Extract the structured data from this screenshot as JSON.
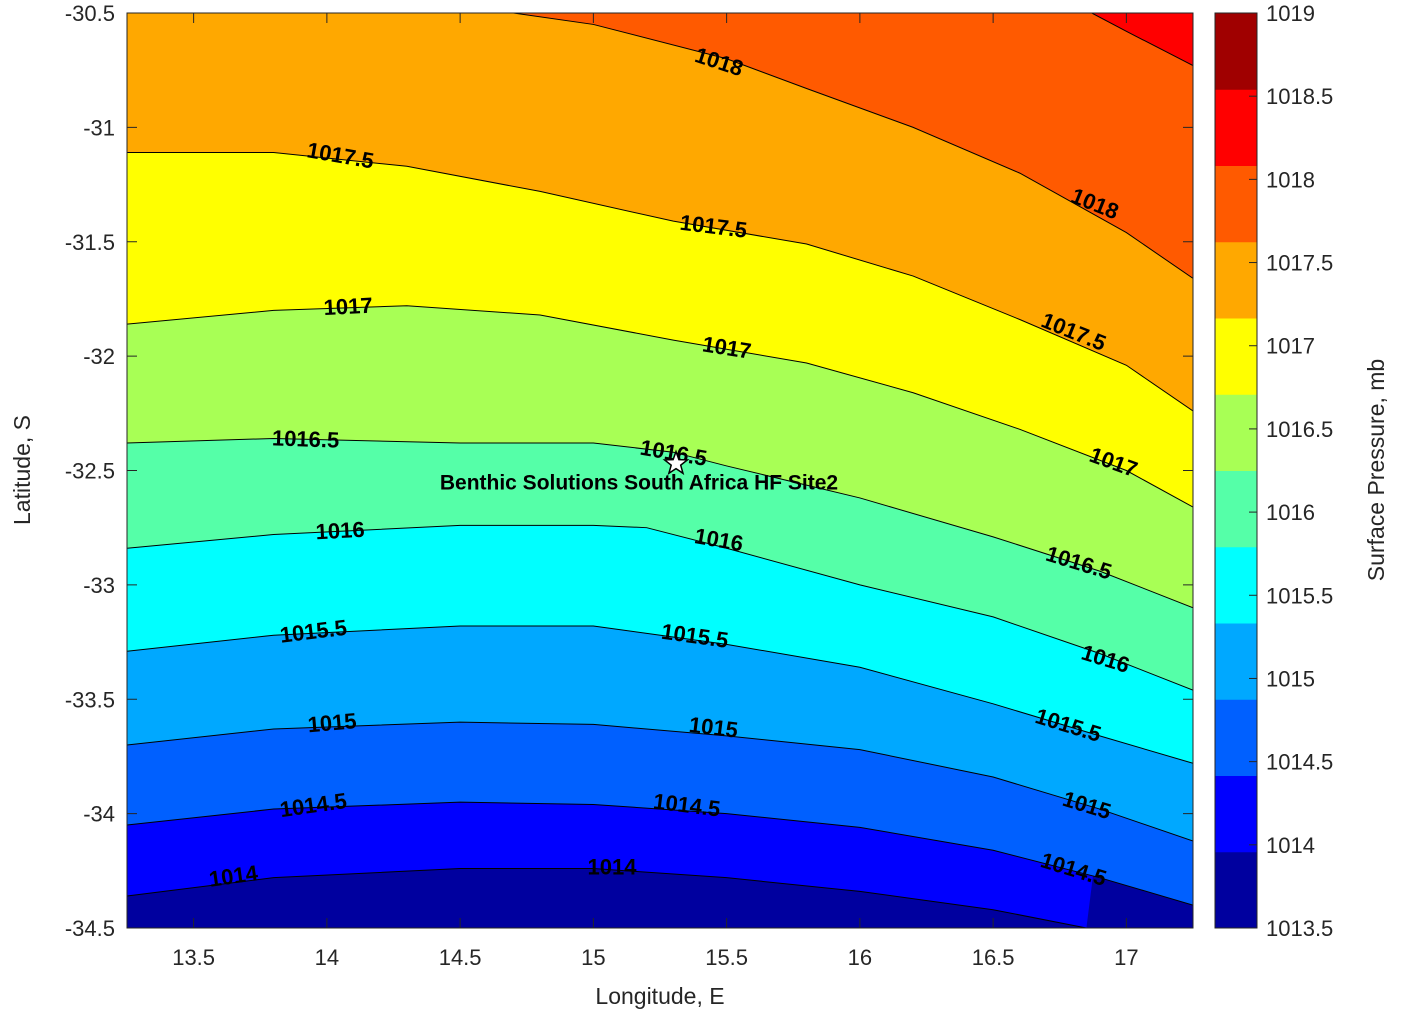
{
  "chart_data": {
    "type": "contour",
    "xlabel": "Longitude, E",
    "ylabel": "Latitude, S",
    "xlim": [
      13.25,
      17.25
    ],
    "ylim": [
      -34.5,
      -30.5
    ],
    "xticks": [
      13.5,
      14,
      14.5,
      15,
      15.5,
      16,
      16.5,
      17
    ],
    "yticks": [
      -30.5,
      -31,
      -31.5,
      -32,
      -32.5,
      -33,
      -33.5,
      -34,
      -34.5
    ],
    "colorbar": {
      "label": "Surface Pressure, mb",
      "levels": [
        1013.5,
        1014,
        1014.5,
        1015,
        1015.5,
        1016,
        1016.5,
        1017,
        1017.5,
        1018,
        1018.5,
        1019
      ],
      "colors": [
        "#00009f",
        "#0000ff",
        "#0060ff",
        "#00a8ff",
        "#00ffff",
        "#55ffa8",
        "#a8ff55",
        "#ffff00",
        "#ffa800",
        "#ff5a00",
        "#ff0000",
        "#a00000"
      ]
    },
    "site": {
      "label": "Benthic Solutions South Africa HF Site2",
      "lon": 15.31,
      "lat": -32.47
    },
    "contours": [
      {
        "level": 1014,
        "points": [
          [
            13.25,
            -34.36
          ],
          [
            13.8,
            -34.28
          ],
          [
            14.5,
            -34.24
          ],
          [
            15.0,
            -34.24
          ],
          [
            15.5,
            -34.28
          ],
          [
            16.0,
            -34.34
          ],
          [
            16.5,
            -34.42
          ],
          [
            16.85,
            -34.5
          ]
        ],
        "labels": [
          {
            "text": "1014",
            "lon": 13.65,
            "lat": -34.28,
            "rot": -8
          },
          {
            "text": "1014",
            "lon": 15.07,
            "lat": -34.24,
            "rot": 0
          }
        ]
      },
      {
        "level": 1014.5,
        "points": [
          [
            13.25,
            -34.05
          ],
          [
            13.8,
            -33.98
          ],
          [
            14.5,
            -33.95
          ],
          [
            15.0,
            -33.96
          ],
          [
            15.5,
            -34.0
          ],
          [
            16.0,
            -34.06
          ],
          [
            16.5,
            -34.16
          ],
          [
            16.9,
            -34.28
          ],
          [
            17.25,
            -34.4
          ]
        ],
        "labels": [
          {
            "text": "1014.5",
            "lon": 13.95,
            "lat": -33.97,
            "rot": -8
          },
          {
            "text": "1014.5",
            "lon": 15.35,
            "lat": -33.97,
            "rot": 7
          },
          {
            "text": "1014.5",
            "lon": 16.8,
            "lat": -34.25,
            "rot": 17
          }
        ]
      },
      {
        "level": 1015,
        "points": [
          [
            13.25,
            -33.7
          ],
          [
            13.8,
            -33.63
          ],
          [
            14.5,
            -33.6
          ],
          [
            15.0,
            -33.61
          ],
          [
            15.5,
            -33.66
          ],
          [
            16.0,
            -33.72
          ],
          [
            16.5,
            -33.84
          ],
          [
            16.9,
            -33.98
          ],
          [
            17.25,
            -34.12
          ]
        ],
        "labels": [
          {
            "text": "1015",
            "lon": 14.02,
            "lat": -33.61,
            "rot": -5
          },
          {
            "text": "1015",
            "lon": 15.45,
            "lat": -33.63,
            "rot": 7
          },
          {
            "text": "1015",
            "lon": 16.85,
            "lat": -33.97,
            "rot": 17
          }
        ]
      },
      {
        "level": 1015.5,
        "points": [
          [
            13.25,
            -33.29
          ],
          [
            13.8,
            -33.22
          ],
          [
            14.5,
            -33.18
          ],
          [
            15.0,
            -33.18
          ],
          [
            15.5,
            -33.26
          ],
          [
            16.0,
            -33.36
          ],
          [
            16.5,
            -33.52
          ],
          [
            16.9,
            -33.66
          ],
          [
            17.25,
            -33.78
          ]
        ],
        "labels": [
          {
            "text": "1015.5",
            "lon": 13.95,
            "lat": -33.21,
            "rot": -7
          },
          {
            "text": "1015.5",
            "lon": 15.38,
            "lat": -33.23,
            "rot": 8
          },
          {
            "text": "1015.5",
            "lon": 16.78,
            "lat": -33.62,
            "rot": 17
          }
        ]
      },
      {
        "level": 1016,
        "points": [
          [
            13.25,
            -32.84
          ],
          [
            13.8,
            -32.78
          ],
          [
            14.5,
            -32.74
          ],
          [
            15.0,
            -32.74
          ],
          [
            15.2,
            -32.75
          ],
          [
            15.5,
            -32.84
          ],
          [
            16.0,
            -33.0
          ],
          [
            16.5,
            -33.14
          ],
          [
            16.9,
            -33.3
          ],
          [
            17.25,
            -33.46
          ]
        ],
        "labels": [
          {
            "text": "1016",
            "lon": 14.05,
            "lat": -32.77,
            "rot": -3
          },
          {
            "text": "1016",
            "lon": 15.47,
            "lat": -32.81,
            "rot": 10
          },
          {
            "text": "1016",
            "lon": 16.92,
            "lat": -33.33,
            "rot": 17
          }
        ]
      },
      {
        "level": 1016.5,
        "points": [
          [
            13.25,
            -32.38
          ],
          [
            13.8,
            -32.36
          ],
          [
            14.5,
            -32.38
          ],
          [
            15.0,
            -32.38
          ],
          [
            15.3,
            -32.42
          ],
          [
            15.5,
            -32.48
          ],
          [
            16.0,
            -32.62
          ],
          [
            16.5,
            -32.79
          ],
          [
            16.9,
            -32.94
          ],
          [
            17.25,
            -33.1
          ]
        ],
        "labels": [
          {
            "text": "1016.5",
            "lon": 13.92,
            "lat": -32.37,
            "rot": 2
          },
          {
            "text": "1016.5",
            "lon": 15.3,
            "lat": -32.43,
            "rot": 10
          },
          {
            "text": "1016.5",
            "lon": 16.82,
            "lat": -32.91,
            "rot": 17
          }
        ]
      },
      {
        "level": 1017,
        "points": [
          [
            13.25,
            -31.86
          ],
          [
            13.8,
            -31.8
          ],
          [
            14.3,
            -31.78
          ],
          [
            14.8,
            -31.82
          ],
          [
            15.3,
            -31.93
          ],
          [
            15.8,
            -32.03
          ],
          [
            16.2,
            -32.16
          ],
          [
            16.6,
            -32.32
          ],
          [
            17.0,
            -32.5
          ],
          [
            17.25,
            -32.66
          ]
        ],
        "labels": [
          {
            "text": "1017",
            "lon": 14.08,
            "lat": -31.79,
            "rot": -3
          },
          {
            "text": "1017",
            "lon": 15.5,
            "lat": -31.97,
            "rot": 9
          },
          {
            "text": "1017",
            "lon": 16.95,
            "lat": -32.47,
            "rot": 20
          }
        ]
      },
      {
        "level": 1017.5,
        "points": [
          [
            13.25,
            -31.11
          ],
          [
            13.8,
            -31.11
          ],
          [
            14.3,
            -31.17
          ],
          [
            14.8,
            -31.28
          ],
          [
            15.3,
            -31.41
          ],
          [
            15.8,
            -31.51
          ],
          [
            16.2,
            -31.65
          ],
          [
            16.6,
            -31.84
          ],
          [
            17.0,
            -32.04
          ],
          [
            17.25,
            -32.24
          ]
        ],
        "labels": [
          {
            "text": "1017.5",
            "lon": 14.05,
            "lat": -31.13,
            "rot": 10
          },
          {
            "text": "1017.5",
            "lon": 15.45,
            "lat": -31.44,
            "rot": 7
          },
          {
            "text": "1017.5",
            "lon": 16.8,
            "lat": -31.9,
            "rot": 22
          }
        ]
      },
      {
        "level": 1018,
        "points": [
          [
            14.7,
            -30.5
          ],
          [
            15.0,
            -30.55
          ],
          [
            15.5,
            -30.7
          ],
          [
            15.8,
            -30.83
          ],
          [
            16.2,
            -31.0
          ],
          [
            16.6,
            -31.2
          ],
          [
            17.0,
            -31.46
          ],
          [
            17.25,
            -31.66
          ]
        ],
        "labels": [
          {
            "text": "1018",
            "lon": 15.47,
            "lat": -30.72,
            "rot": 18
          },
          {
            "text": "1018",
            "lon": 16.88,
            "lat": -31.34,
            "rot": 22
          }
        ]
      },
      {
        "level": 1018.5,
        "points": [
          [
            16.87,
            -30.5
          ],
          [
            17.0,
            -30.58
          ],
          [
            17.25,
            -30.73
          ]
        ],
        "labels": []
      }
    ]
  }
}
